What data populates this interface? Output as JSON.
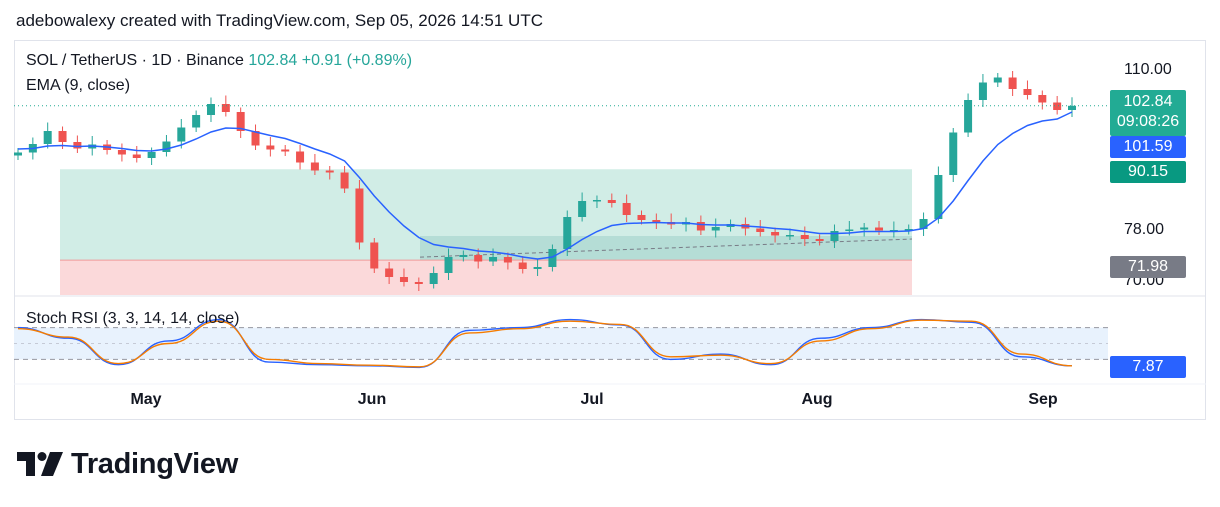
{
  "header": {
    "attribution": "adebowalexy created with TradingView.com, Sep 05, 2026 14:51 UTC"
  },
  "legend": {
    "symbol": "SOL / TetherUS · 1D · Binance",
    "price": "102.84",
    "change": "+0.91 (+0.89%)",
    "ema": "EMA (9, close)",
    "stoch": "Stoch RSI (3, 3, 14, 14, close)"
  },
  "price_axis": {
    "labels": [
      "110.00",
      "78.00",
      "70.00"
    ]
  },
  "badges": {
    "last_price": "102.84",
    "countdown": "09:08:26",
    "ema_value": "101.59",
    "box_upper": "90.15",
    "box_lower": "71.98",
    "stoch_value": "7.87"
  },
  "colors": {
    "up": "#26a69a",
    "down": "#ef5350",
    "ema": "#2962ff",
    "stoch_k": "#2962ff",
    "stoch_d": "#f57c00",
    "profit_zone": "#d1ede6",
    "loss_zone": "#fbd9da",
    "rsi_band": "#e8f2fd",
    "badge_green": "#22ab94",
    "badge_green_dark": "#089981",
    "badge_blue": "#2962ff",
    "badge_gray": "#787b86"
  },
  "time_axis": {
    "labels": [
      "May",
      "Jun",
      "Jul",
      "Aug",
      "Sep"
    ]
  },
  "brand": {
    "logo_text": "TradingView",
    "logo_icon": "tradingview-logo-icon"
  },
  "chart_data": [
    {
      "type": "candlestick",
      "title": "SOL / TetherUS · 1D · Binance",
      "y_range": [
        68,
        112
      ],
      "x": [
        "Apr 16",
        "Apr 18",
        "Apr 20",
        "Apr 22",
        "Apr 24",
        "Apr 26",
        "Apr 28",
        "Apr 30",
        "May 02",
        "May 04",
        "May 06",
        "May 08",
        "May 10",
        "May 12",
        "May 14",
        "May 16",
        "May 18",
        "May 20",
        "May 22",
        "May 24",
        "May 26",
        "May 28",
        "May 30",
        "Jun 01",
        "Jun 03",
        "Jun 05",
        "Jun 07",
        "Jun 09",
        "Jun 11",
        "Jun 13",
        "Jun 15",
        "Jun 17",
        "Jun 19",
        "Jun 21",
        "Jun 23",
        "Jun 25",
        "Jun 27",
        "Jun 29",
        "Jul 01",
        "Jul 03",
        "Jul 05",
        "Jul 07",
        "Jul 09",
        "Jul 11",
        "Jul 13",
        "Jul 15",
        "Jul 17",
        "Jul 19",
        "Jul 21",
        "Jul 23",
        "Jul 25",
        "Jul 27",
        "Jul 29",
        "Jul 31",
        "Aug 02",
        "Aug 04",
        "Aug 06",
        "Aug 08",
        "Aug 10",
        "Aug 12",
        "Aug 14",
        "Aug 16",
        "Aug 18",
        "Aug 20",
        "Aug 22",
        "Aug 24",
        "Aug 26",
        "Aug 28",
        "Aug 30",
        "Sep 01",
        "Sep 03",
        "Sep 05"
      ],
      "close": [
        93.5,
        95.2,
        97.8,
        95.6,
        94.3,
        95.1,
        94.0,
        93.1,
        92.4,
        93.6,
        95.7,
        98.5,
        101.0,
        103.2,
        101.6,
        97.8,
        94.9,
        94.1,
        93.7,
        91.5,
        89.9,
        89.5,
        86.3,
        75.5,
        70.3,
        68.6,
        67.6,
        67.2,
        69.4,
        72.6,
        73.0,
        71.7,
        72.6,
        71.5,
        70.2,
        70.6,
        74.2,
        80.6,
        83.8,
        84.0,
        83.4,
        81.0,
        80.0,
        79.6,
        79.1,
        79.6,
        77.9,
        78.6,
        79.2,
        78.3,
        77.6,
        76.9,
        77.0,
        76.2,
        75.8,
        77.8,
        78.1,
        78.5,
        77.9,
        78.0,
        78.2,
        80.2,
        89.0,
        97.5,
        104.0,
        107.5,
        108.5,
        106.2,
        105.0,
        103.5,
        102.0,
        102.84
      ],
      "ema_9": [
        94.2,
        94.3,
        94.8,
        94.9,
        94.7,
        94.8,
        94.6,
        94.3,
        93.9,
        93.8,
        94.2,
        95.0,
        96.2,
        97.6,
        98.4,
        98.3,
        97.6,
        96.9,
        96.3,
        95.3,
        94.2,
        93.2,
        91.8,
        88.5,
        84.8,
        81.6,
        78.8,
        76.5,
        75.1,
        74.6,
        74.3,
        73.8,
        73.6,
        73.2,
        72.6,
        72.2,
        72.6,
        74.2,
        76.1,
        77.7,
        78.9,
        79.3,
        79.4,
        79.5,
        79.4,
        79.4,
        79.1,
        79.0,
        79.0,
        78.8,
        78.6,
        78.3,
        78.1,
        77.7,
        77.3,
        77.3,
        77.4,
        77.7,
        77.7,
        77.7,
        77.8,
        78.3,
        80.4,
        83.8,
        87.9,
        91.8,
        95.1,
        97.3,
        98.9,
        99.8,
        100.2,
        101.59
      ]
    },
    {
      "type": "line",
      "title": "Stoch RSI (3, 3, 14, 14, close)",
      "y_range": [
        0,
        100
      ],
      "bands": [
        80,
        20
      ],
      "x": [
        "Apr 16",
        "Apr 23",
        "Apr 30",
        "May 07",
        "May 14",
        "May 21",
        "May 28",
        "Jun 04",
        "Jun 11",
        "Jun 18",
        "Jun 25",
        "Jul 02",
        "Jul 09",
        "Jul 16",
        "Jul 23",
        "Jul 30",
        "Aug 06",
        "Aug 13",
        "Aug 20",
        "Aug 27",
        "Sep 03",
        "Sep 05"
      ],
      "series": [
        {
          "name": "K",
          "values": [
            80,
            60,
            10,
            55,
            95,
            15,
            10,
            8,
            5,
            75,
            80,
            95,
            85,
            20,
            30,
            10,
            60,
            80,
            95,
            90,
            25,
            7.87
          ]
        },
        {
          "name": "D",
          "values": [
            78,
            62,
            12,
            50,
            92,
            20,
            12,
            9,
            6,
            70,
            78,
            92,
            86,
            25,
            28,
            12,
            55,
            78,
            94,
            92,
            30,
            8
          ]
        }
      ]
    }
  ]
}
